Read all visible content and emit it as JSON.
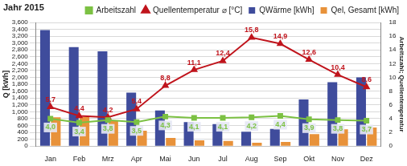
{
  "chart_data": {
    "type": "bar",
    "title": "Jahr 2015",
    "categories": [
      "Jan",
      "Feb",
      "Mrz",
      "Apr",
      "Mai",
      "Jun",
      "Jul",
      "Aug",
      "Sep",
      "Okt",
      "Nov",
      "Dez"
    ],
    "y_label": "Q [kWh]",
    "y2_label": "Arbeitszahl; Quellentemperatur",
    "ylim": [
      0,
      3600
    ],
    "yticks": [
      0,
      200,
      400,
      600,
      800,
      1000,
      1200,
      1400,
      1600,
      1800,
      2000,
      2200,
      2400,
      2600,
      2800,
      3000,
      3200,
      3400,
      3600
    ],
    "y2lim": [
      0,
      18
    ],
    "y2ticks": [
      0,
      2,
      4,
      6,
      8,
      10,
      12,
      14,
      16,
      18
    ],
    "grid": true,
    "legend": "top",
    "series": [
      {
        "name": "QWärme [kWh]",
        "type": "bar",
        "color": "#3f4c9c",
        "values": [
          3380,
          2880,
          2760,
          1560,
          1040,
          700,
          640,
          420,
          500,
          1360,
          1860,
          2000
        ]
      },
      {
        "name": "Qel, Gesamt [kWh]",
        "type": "bar",
        "color": "#e8923a",
        "values": [
          840,
          850,
          730,
          450,
          240,
          170,
          150,
          100,
          120,
          350,
          490,
          540
        ]
      },
      {
        "name": "Arbeitszahl",
        "type": "line",
        "axis": "y2",
        "color": "#7cc143",
        "marker": "square",
        "line_style": "solid",
        "data_labels": true,
        "values": [
          4.0,
          3.4,
          3.8,
          3.5,
          4.3,
          4.1,
          4.1,
          4.2,
          4.4,
          3.9,
          3.8,
          3.7
        ],
        "value_labels": [
          "4,0",
          "3,4",
          "3,8",
          "3,5",
          "4,3",
          "4,1",
          "4,1",
          "4,2",
          "4,4",
          "3,9",
          "3,8",
          "3,7"
        ]
      },
      {
        "name": "Quellentemperatur ⌀ [°C]",
        "type": "line",
        "axis": "y2",
        "color": "#c0141c",
        "marker": "triangle",
        "line_style": "solid",
        "data_labels": true,
        "values": [
          5.7,
          4.4,
          4.2,
          5.4,
          8.8,
          11.1,
          12.4,
          15.8,
          14.9,
          12.6,
          10.4,
          8.6
        ],
        "value_labels": [
          "5,7",
          "4,4",
          "4,2",
          "5,4",
          "8,8",
          "11,1",
          "12,4",
          "15,8",
          "14,9",
          "12,6",
          "10,4",
          "8,6"
        ]
      }
    ]
  }
}
